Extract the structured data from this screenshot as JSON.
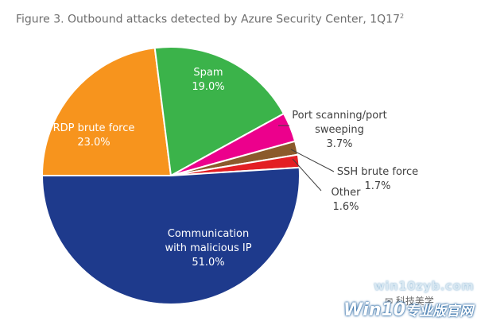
{
  "title": "Figure 3. Outbound attacks detected by Azure Security Center, 1Q17",
  "title_superscript": "2",
  "chart_data": {
    "type": "pie",
    "title": "Figure 3. Outbound attacks detected by Azure Security Center, 1Q17",
    "start": "left-horizontal",
    "direction": "clockwise",
    "slices": [
      {
        "key": "rdp",
        "label": "RDP brute force",
        "value": 23.0,
        "display": "23.0%",
        "color": "#f7941d"
      },
      {
        "key": "spam",
        "label": "Spam",
        "value": 19.0,
        "display": "19.0%",
        "color": "#3bb34a"
      },
      {
        "key": "portscan",
        "label": "Port scanning/port sweeping",
        "label_lines": [
          "Port scanning/port",
          "sweeping"
        ],
        "value": 3.7,
        "display": "3.7%",
        "color": "#ec008c"
      },
      {
        "key": "ssh",
        "label": "SSH brute force",
        "value": 1.7,
        "display": "1.7%",
        "color": "#8b5a2b"
      },
      {
        "key": "other",
        "label": "Other",
        "value": 1.6,
        "display": "1.6%",
        "color": "#e31e24"
      },
      {
        "key": "malicious",
        "label": "Communication with malicious IP",
        "label_lines": [
          "Communication",
          "with malicious IP"
        ],
        "value": 51.0,
        "display": "51.0%",
        "color": "#1e3a8c"
      }
    ]
  },
  "watermarks": {
    "site_small": "win10zyb.com",
    "wechat": "科技美学",
    "brand": "Win10",
    "brand_cn": "专业版官网"
  }
}
